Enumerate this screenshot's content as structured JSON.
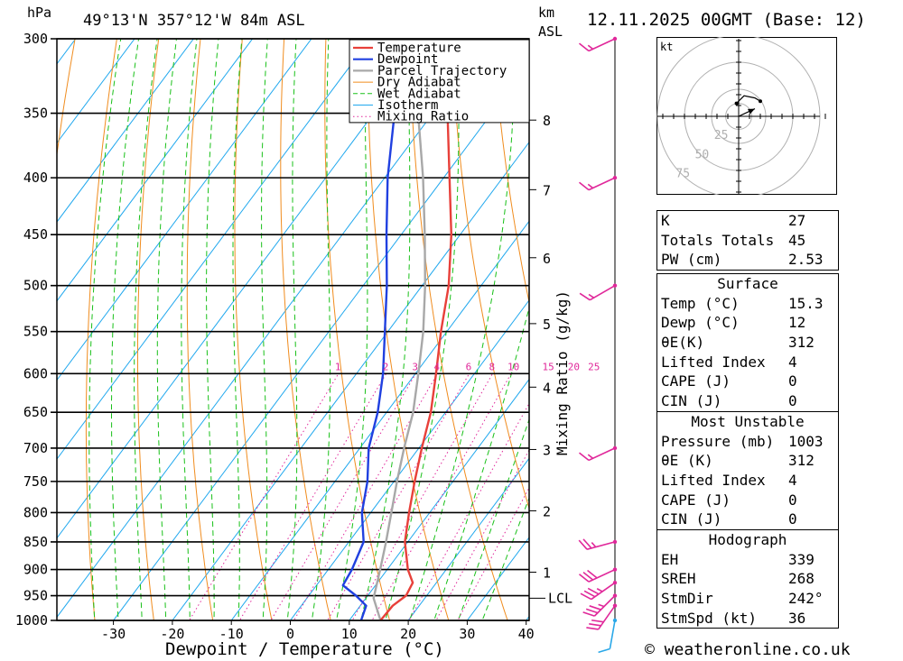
{
  "header": {
    "hpa_label": "hPa",
    "location": "49°13'N  357°12'W  84m  ASL",
    "km_label": "km",
    "asl_label": "ASL",
    "datetime": "12.11.2025  00GMT  (Base: 12)"
  },
  "chart_data": {
    "type": "skew-t",
    "xlabel": "Dewpoint / Temperature (°C)",
    "ylabel": "hPa",
    "ylim": [
      1000,
      300
    ],
    "xlim": [
      -40,
      40
    ],
    "pressure_levels": [
      300,
      350,
      400,
      450,
      500,
      550,
      600,
      650,
      700,
      750,
      800,
      850,
      900,
      950,
      1000
    ],
    "temperature_ticks": [
      -30,
      -20,
      -10,
      0,
      10,
      20,
      30,
      40
    ],
    "km_ticks": [
      {
        "km": "1",
        "p": 905
      },
      {
        "km": "2",
        "p": 797
      },
      {
        "km": "3",
        "p": 702
      },
      {
        "km": "4",
        "p": 617
      },
      {
        "km": "5",
        "p": 541
      },
      {
        "km": "6",
        "p": 472
      },
      {
        "km": "7",
        "p": 410
      },
      {
        "km": "8",
        "p": 355
      }
    ],
    "lcl_label": "LCL",
    "lcl_pressure": 955,
    "mixing_ratio_label": "Mixing Ratio (g/kg)",
    "mixing_ratios": [
      1,
      2,
      3,
      4,
      6,
      8,
      10,
      15,
      20,
      25
    ],
    "mixing_ratio_label_pressure": 600,
    "legend": [
      "Temperature",
      "Dewpoint",
      "Parcel Trajectory",
      "Dry Adiabat",
      "Wet Adiabat",
      "Isotherm",
      "Mixing Ratio"
    ],
    "temperature": [
      {
        "p": 1000,
        "t": 15.3
      },
      {
        "p": 970,
        "t": 15.5
      },
      {
        "p": 950,
        "t": 16.5
      },
      {
        "p": 925,
        "t": 16.0
      },
      {
        "p": 900,
        "t": 13.5
      },
      {
        "p": 850,
        "t": 9.5
      },
      {
        "p": 800,
        "t": 6.5
      },
      {
        "p": 750,
        "t": 3.5
      },
      {
        "p": 700,
        "t": 0.5
      },
      {
        "p": 650,
        "t": -2.5
      },
      {
        "p": 600,
        "t": -6.5
      },
      {
        "p": 550,
        "t": -11.0
      },
      {
        "p": 500,
        "t": -15.5
      },
      {
        "p": 450,
        "t": -21.5
      },
      {
        "p": 400,
        "t": -29.0
      },
      {
        "p": 350,
        "t": -37.5
      },
      {
        "p": 300,
        "t": -47.0
      }
    ],
    "dewpoint": [
      {
        "p": 1000,
        "t": 12.0
      },
      {
        "p": 970,
        "t": 11.0
      },
      {
        "p": 950,
        "t": 8.0
      },
      {
        "p": 930,
        "t": 4.5
      },
      {
        "p": 900,
        "t": 4.0
      },
      {
        "p": 850,
        "t": 2.5
      },
      {
        "p": 800,
        "t": -1.5
      },
      {
        "p": 750,
        "t": -4.5
      },
      {
        "p": 700,
        "t": -8.5
      },
      {
        "p": 650,
        "t": -11.5
      },
      {
        "p": 600,
        "t": -15.5
      },
      {
        "p": 550,
        "t": -20.5
      },
      {
        "p": 500,
        "t": -26.0
      },
      {
        "p": 450,
        "t": -32.5
      },
      {
        "p": 400,
        "t": -39.5
      },
      {
        "p": 350,
        "t": -46.5
      },
      {
        "p": 300,
        "t": -54.0
      }
    ],
    "parcel": [
      {
        "p": 1000,
        "t": 15.3
      },
      {
        "p": 955,
        "t": 11.3
      },
      {
        "p": 900,
        "t": 8.8
      },
      {
        "p": 850,
        "t": 6.3
      },
      {
        "p": 800,
        "t": 3.5
      },
      {
        "p": 750,
        "t": 0.5
      },
      {
        "p": 700,
        "t": -2.5
      },
      {
        "p": 650,
        "t": -5.5
      },
      {
        "p": 600,
        "t": -9.5
      },
      {
        "p": 550,
        "t": -14.0
      },
      {
        "p": 500,
        "t": -19.5
      },
      {
        "p": 450,
        "t": -26.0
      },
      {
        "p": 400,
        "t": -33.5
      },
      {
        "p": 350,
        "t": -42.5
      },
      {
        "p": 300,
        "t": -53.0
      }
    ],
    "wind_barbs": [
      {
        "p": 1000,
        "dir": 190,
        "spd": 10
      },
      {
        "p": 970,
        "dir": 215,
        "spd": 30
      },
      {
        "p": 950,
        "dir": 225,
        "spd": 35
      },
      {
        "p": 925,
        "dir": 235,
        "spd": 35
      },
      {
        "p": 900,
        "dir": 245,
        "spd": 30
      },
      {
        "p": 850,
        "dir": 255,
        "spd": 25
      },
      {
        "p": 700,
        "dir": 245,
        "spd": 15
      },
      {
        "p": 500,
        "dir": 240,
        "spd": 15
      },
      {
        "p": 400,
        "dir": 245,
        "spd": 15
      },
      {
        "p": 300,
        "dir": 245,
        "spd": 15
      }
    ],
    "hodograph": {
      "unit_label": "kt",
      "ring_labels": [
        "25",
        "50",
        "75"
      ],
      "trace": [
        [
          -2,
          12
        ],
        [
          5,
          19
        ],
        [
          15,
          17
        ],
        [
          20,
          14
        ]
      ],
      "storm_motion": [
        [
          0,
          0
        ],
        [
          15,
          7
        ]
      ]
    }
  },
  "indices": {
    "general": [
      {
        "label": "K",
        "value": "27"
      },
      {
        "label": "Totals Totals",
        "value": "45"
      },
      {
        "label": "PW (cm)",
        "value": "2.53"
      }
    ],
    "surface": {
      "title": "Surface",
      "rows": [
        {
          "label": "Temp (°C)",
          "value": "15.3"
        },
        {
          "label": "Dewp (°C)",
          "value": "12"
        },
        {
          "label": "θE(K)",
          "value": "312"
        },
        {
          "label": "Lifted Index",
          "value": "4"
        },
        {
          "label": "CAPE (J)",
          "value": "0"
        },
        {
          "label": "CIN (J)",
          "value": "0"
        }
      ]
    },
    "most_unstable": {
      "title": "Most Unstable",
      "rows": [
        {
          "label": "Pressure (mb)",
          "value": "1003"
        },
        {
          "label": "θE (K)",
          "value": "312"
        },
        {
          "label": "Lifted Index",
          "value": "4"
        },
        {
          "label": "CAPE (J)",
          "value": "0"
        },
        {
          "label": "CIN (J)",
          "value": "0"
        }
      ]
    },
    "hodograph": {
      "title": "Hodograph",
      "rows": [
        {
          "label": "EH",
          "value": "339"
        },
        {
          "label": "SREH",
          "value": "268"
        },
        {
          "label": "StmDir",
          "value": "242°"
        },
        {
          "label": "StmSpd (kt)",
          "value": "36"
        }
      ]
    }
  },
  "footer": {
    "copyright": "© weatheronline.co.uk"
  },
  "colors": {
    "temperature": "#e8403a",
    "dewpoint": "#2040e0",
    "parcel": "#a8a8a8",
    "dry_adiabat": "#f08c1e",
    "wet_adiabat": "#18c018",
    "isotherm": "#20a8ee",
    "mixing_ratio": "#e0289a",
    "barb": "#e0289a",
    "barb_low": "#2aa8e8"
  }
}
